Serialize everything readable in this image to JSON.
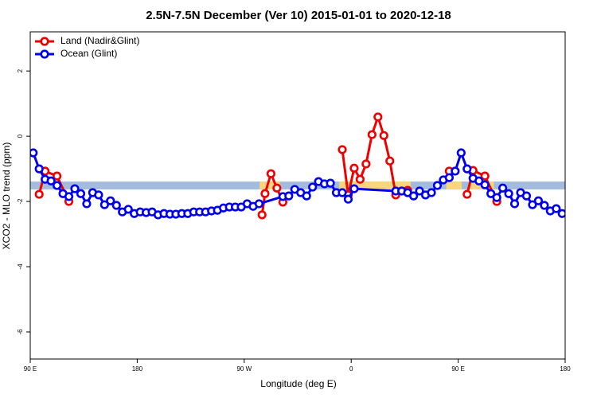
{
  "chart_data": {
    "type": "line",
    "title": "2.5N-7.5N December (Ver 10)   2015-01-01 to 2020-12-18",
    "x_label": "Longitude (deg E)",
    "y_label": "XCO2 - MLO trend (ppm)",
    "xlim": [
      90,
      540
    ],
    "ylim": [
      -6.83,
      3.2
    ],
    "xticks": [
      {
        "value": 90,
        "label": "90 E"
      },
      {
        "value": 180,
        "label": "180"
      },
      {
        "value": 270,
        "label": "90 W"
      },
      {
        "value": 360,
        "label": "0"
      },
      {
        "value": 450,
        "label": "90 E"
      },
      {
        "value": 540,
        "label": "180"
      }
    ],
    "yticks": [
      -6,
      -4,
      -2,
      0,
      2
    ],
    "legend": "top-left",
    "bands": [
      {
        "color": "#a3bbdc",
        "xlim": [
          90,
          540
        ],
        "ylim": [
          -1.63,
          -1.39
        ]
      },
      {
        "color": "#f8d57e",
        "xlim": [
          283,
          300
        ],
        "ylim": [
          -1.63,
          -1.39
        ]
      },
      {
        "color": "#f8d57e",
        "xlim": [
          350,
          410
        ],
        "ylim": [
          -1.63,
          -1.39
        ]
      },
      {
        "color": "#f8d57e",
        "xlim": [
          440,
          453
        ],
        "ylim": [
          -1.63,
          -1.39
        ]
      },
      {
        "color": "#f8d57e",
        "xlim": [
          460,
          480
        ],
        "ylim": [
          -1.63,
          -1.39
        ]
      }
    ],
    "series": [
      {
        "name": "Land (Nadir&Glint)",
        "color": "#ee0000",
        "x": [
          97.5,
          102.5,
          112.5,
          122.5,
          null,
          285,
          287.5,
          292.5,
          297.5,
          302.5,
          null,
          352.5,
          357.5,
          362.5,
          367.5,
          372.5,
          377.5,
          382.5,
          387.5,
          392.5,
          397.5,
          402.5,
          407.5,
          null,
          442.5,
          null,
          457.5,
          462.5,
          472.5,
          482.5
        ],
        "values": [
          -1.78,
          -1.07,
          -1.22,
          -2.0,
          null,
          -2.41,
          -1.76,
          -1.15,
          -1.59,
          -2.02,
          null,
          -0.41,
          -1.8,
          -0.98,
          -1.32,
          -0.85,
          0.05,
          0.59,
          0.02,
          -0.76,
          -1.8,
          -1.68,
          -1.66,
          null,
          -1.07,
          null,
          -1.78,
          -1.05,
          -1.22,
          -2.0
        ]
      },
      {
        "name": "Ocean (Glint)",
        "color": "#0000ee",
        "x": [
          92.5,
          97.5,
          102.5,
          107.5,
          112.5,
          117.5,
          122.5,
          127.5,
          132.5,
          137.5,
          142.5,
          147.5,
          152.5,
          157.5,
          162.5,
          167.5,
          172.5,
          177.5,
          182.5,
          187.5,
          192.5,
          197.5,
          202.5,
          207.5,
          212.5,
          217.5,
          222.5,
          227.5,
          232.5,
          237.5,
          242.5,
          247.5,
          252.5,
          257.5,
          262.5,
          267.5,
          272.5,
          277.5,
          282.5,
          302.5,
          307.5,
          312.5,
          317.5,
          322.5,
          327.5,
          332.5,
          337.5,
          342.5,
          347.5,
          352.5,
          357.5,
          362.5,
          397.5,
          402.5,
          407.5,
          412.5,
          417.5,
          422.5,
          427.5,
          432.5,
          437.5,
          442.5,
          447.5,
          452.5,
          457.5,
          462.5,
          467.5,
          472.5,
          477.5,
          482.5,
          487.5,
          492.5,
          497.5,
          502.5,
          507.5,
          512.5,
          517.5,
          522.5,
          527.5,
          532.5,
          537.5
        ],
        "values": [
          -0.51,
          -1.0,
          -1.32,
          -1.37,
          -1.51,
          -1.76,
          -1.85,
          -1.61,
          -1.76,
          -2.07,
          -1.73,
          -1.8,
          -2.1,
          -1.98,
          -2.12,
          -2.32,
          -2.24,
          -2.37,
          -2.32,
          -2.34,
          -2.32,
          -2.41,
          -2.37,
          -2.39,
          -2.39,
          -2.37,
          -2.37,
          -2.32,
          -2.32,
          -2.32,
          -2.29,
          -2.27,
          -2.2,
          -2.17,
          -2.17,
          -2.17,
          -2.07,
          -2.15,
          -2.07,
          -1.85,
          -1.83,
          -1.63,
          -1.73,
          -1.83,
          -1.56,
          -1.39,
          -1.46,
          -1.44,
          -1.73,
          -1.73,
          -1.93,
          -1.61,
          -1.68,
          -1.68,
          -1.73,
          -1.83,
          -1.68,
          -1.8,
          -1.73,
          -1.51,
          -1.34,
          -1.27,
          -1.07,
          -0.51,
          -1.0,
          -1.29,
          -1.37,
          -1.49,
          -1.76,
          -1.88,
          -1.59,
          -1.76,
          -2.07,
          -1.73,
          -1.83,
          -2.1,
          -1.98,
          -2.12,
          -2.29,
          -2.22,
          -2.37
        ]
      }
    ]
  }
}
